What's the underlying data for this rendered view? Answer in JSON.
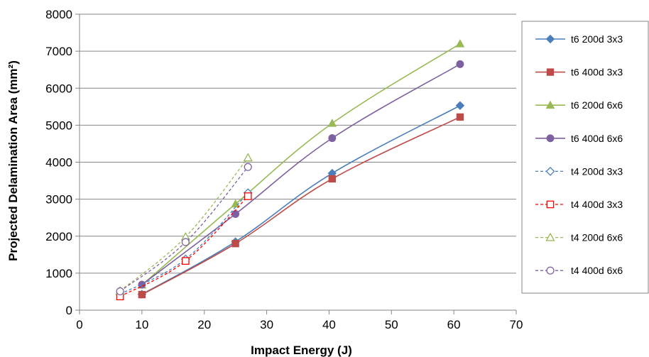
{
  "chart_data": {
    "type": "scatter",
    "xlabel": "Impact Energy (J)",
    "ylabel": "Projected Delamination Area (mm²)",
    "xlim": [
      0,
      70
    ],
    "ylim": [
      0,
      8000
    ],
    "x_ticks": [
      0,
      10,
      20,
      30,
      40,
      50,
      60,
      70
    ],
    "y_ticks": [
      0,
      1000,
      2000,
      3000,
      4000,
      5000,
      6000,
      7000,
      8000
    ],
    "x_tick_labels": [
      "0",
      "10",
      "20",
      "30",
      "40",
      "50",
      "60",
      "70"
    ],
    "y_tick_labels": [
      "0",
      "1000",
      "2000",
      "3000",
      "4000",
      "5000",
      "6000",
      "7000",
      "8000"
    ],
    "grid": "horizontal",
    "legend_position": "right",
    "series": [
      {
        "name": "t6 200d 3x3",
        "color": "#4a7ebb",
        "marker": "diamond",
        "filled": true,
        "dashed": false,
        "x": [
          10,
          25,
          40.5,
          61
        ],
        "y": [
          430,
          1850,
          3700,
          5530
        ]
      },
      {
        "name": "t6 400d 3x3",
        "color": "#be4b48",
        "marker": "square",
        "filled": true,
        "dashed": false,
        "x": [
          10,
          25,
          40.5,
          61
        ],
        "y": [
          420,
          1800,
          3550,
          5220
        ]
      },
      {
        "name": "t6 200d 6x6",
        "color": "#98b954",
        "marker": "triangle",
        "filled": true,
        "dashed": false,
        "x": [
          10,
          25,
          40.5,
          61
        ],
        "y": [
          680,
          2870,
          5050,
          7200
        ]
      },
      {
        "name": "t6 400d 6x6",
        "color": "#7d60a0",
        "marker": "circle",
        "filled": true,
        "dashed": false,
        "x": [
          10,
          25,
          40.5,
          61
        ],
        "y": [
          690,
          2600,
          4650,
          6650
        ]
      },
      {
        "name": "t4 200d 3x3",
        "color": "#4a7ebb",
        "marker": "diamond",
        "filled": false,
        "dashed": true,
        "x": [
          6.5,
          17,
          27
        ],
        "y": [
          430,
          1380,
          3170
        ]
      },
      {
        "name": "t4 400d 3x3",
        "color": "#ff0000",
        "marker": "square",
        "filled": false,
        "dashed": true,
        "x": [
          6.5,
          17,
          27
        ],
        "y": [
          370,
          1330,
          3080
        ]
      },
      {
        "name": "t4 200d 6x6",
        "color": "#98b954",
        "marker": "triangle",
        "filled": false,
        "dashed": true,
        "x": [
          6.5,
          17,
          27
        ],
        "y": [
          520,
          1980,
          4120
        ]
      },
      {
        "name": "t4 400d 6x6",
        "color": "#7d60a0",
        "marker": "circle",
        "filled": false,
        "dashed": true,
        "x": [
          6.5,
          17,
          27
        ],
        "y": [
          510,
          1840,
          3870
        ]
      }
    ]
  }
}
